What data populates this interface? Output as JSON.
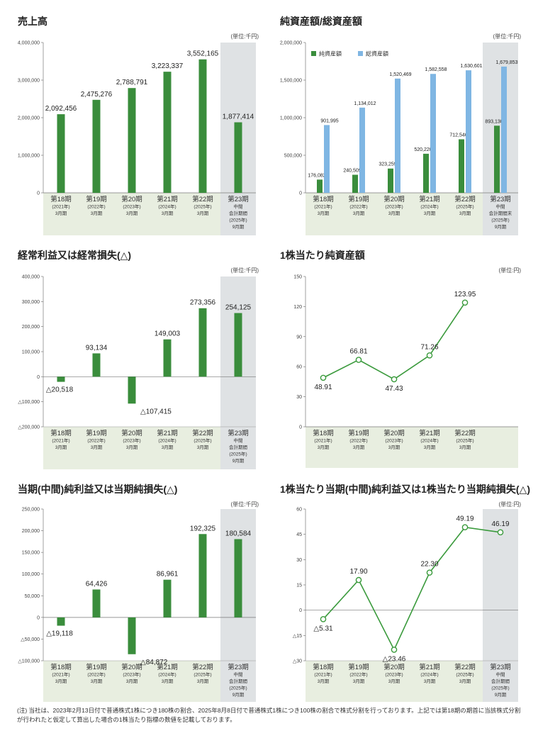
{
  "colors": {
    "bar_green": "#3a8d3c",
    "bar_blue": "#7fb6e3",
    "line_green": "#3a9a3c",
    "band": "#e8eee0",
    "highlight": "#dfe2e4"
  },
  "labels": {
    "p18": [
      "第18期",
      "2021年",
      "3月期"
    ],
    "p19": [
      "第19期",
      "2022年",
      "3月期"
    ],
    "p20": [
      "第20期",
      "2023年",
      "3月期"
    ],
    "p21": [
      "第21期",
      "2024年",
      "3月期"
    ],
    "p22": [
      "第22期",
      "2025年",
      "3月期"
    ],
    "p23": [
      "第23期",
      "中間",
      "会計期間",
      "2025年",
      "9月期"
    ],
    "p23b": [
      "第23期",
      "中間",
      "会計期間末",
      "2025年",
      "9月期"
    ]
  },
  "chart_data": [
    {
      "type": "bar",
      "title": "売上高",
      "unit": "(単位:千円)",
      "categories": [
        "第18期",
        "第19期",
        "第20期",
        "第21期",
        "第22期",
        "第23期"
      ],
      "values": [
        2092456,
        2475276,
        2788791,
        3223337,
        3552165,
        1877414
      ],
      "value_labels": [
        "2,092,456",
        "2,475,276",
        "2,788,791",
        "3,223,337",
        "3,552,165",
        "1,877,414"
      ],
      "ylim": [
        0,
        4000000
      ],
      "yticks": [
        0,
        1000000,
        2000000,
        3000000,
        4000000
      ],
      "ytick_labels": [
        "0",
        "1,000,000",
        "2,000,000",
        "3,000,000",
        "4,000,000"
      ],
      "highlight_last": true
    },
    {
      "type": "bar",
      "title": "純資産額/総資産額",
      "unit": "(単位:千円)",
      "categories": [
        "第18期",
        "第19期",
        "第20期",
        "第21期",
        "第22期",
        "第23期"
      ],
      "series": [
        {
          "name": "純資産額",
          "values": [
            176082,
            240509,
            323259,
            520220,
            712546,
            893130
          ],
          "labels": [
            "176,082",
            "240,509",
            "323,259",
            "520,220",
            "712,546",
            "893,130"
          ]
        },
        {
          "name": "総資産額",
          "values": [
            901995,
            1134012,
            1520469,
            1582558,
            1630601,
            1679853
          ],
          "labels": [
            "901,995",
            "1,134,012",
            "1,520,469",
            "1,582,558",
            "1,630,601",
            "1,679,853"
          ]
        }
      ],
      "ylim": [
        0,
        2000000
      ],
      "yticks": [
        0,
        500000,
        1000000,
        1500000,
        2000000
      ],
      "ytick_labels": [
        "0",
        "500,000",
        "1,000,000",
        "1,500,000",
        "2,000,000"
      ],
      "legend": "top-left",
      "highlight_last": true
    },
    {
      "type": "bar",
      "title": "経常利益又は経常損失(△)",
      "unit": "(単位:千円)",
      "categories": [
        "第18期",
        "第19期",
        "第20期",
        "第21期",
        "第22期",
        "第23期"
      ],
      "values": [
        -20518,
        93134,
        -107415,
        149003,
        273356,
        254125
      ],
      "value_labels": [
        "△20,518",
        "93,134",
        "△107,415",
        "149,003",
        "273,356",
        "254,125"
      ],
      "ylim": [
        -200000,
        400000
      ],
      "yticks": [
        -200000,
        -100000,
        0,
        100000,
        200000,
        300000,
        400000
      ],
      "ytick_labels": [
        "△200,000",
        "△100,000",
        "0",
        "100,000",
        "200,000",
        "300,000",
        "400,000"
      ],
      "highlight_last": true
    },
    {
      "type": "line",
      "title": "1株当たり純資産額",
      "unit": "(単位:円)",
      "categories": [
        "第18期",
        "第19期",
        "第20期",
        "第21期",
        "第22期"
      ],
      "values": [
        48.91,
        66.81,
        47.43,
        71.26,
        123.95
      ],
      "value_labels": [
        "48.91",
        "66.81",
        "47.43",
        "71.26",
        "123.95"
      ],
      "ylim": [
        0,
        150
      ],
      "yticks": [
        0,
        30,
        60,
        90,
        120,
        150
      ],
      "ytick_labels": [
        "0",
        "30",
        "60",
        "90",
        "120",
        "150"
      ],
      "highlight_last": false
    },
    {
      "type": "bar",
      "title": "当期(中間)純利益又は当期純損失(△)",
      "unit": "(単位:千円)",
      "categories": [
        "第18期",
        "第19期",
        "第20期",
        "第21期",
        "第22期",
        "第23期"
      ],
      "values": [
        -19118,
        64426,
        -84872,
        86961,
        192325,
        180584
      ],
      "value_labels": [
        "△19,118",
        "64,426",
        "△84,872",
        "86,961",
        "192,325",
        "180,584"
      ],
      "ylim": [
        -100000,
        250000
      ],
      "yticks": [
        -100000,
        -50000,
        0,
        50000,
        100000,
        150000,
        200000,
        250000
      ],
      "ytick_labels": [
        "△100,000",
        "△50,000",
        "0",
        "50,000",
        "100,000",
        "150,000",
        "200,000",
        "250,000"
      ],
      "highlight_last": true
    },
    {
      "type": "line",
      "title": "1株当たり当期(中間)純利益又は1株当たり当期純損失(△)",
      "unit": "(単位:円)",
      "categories": [
        "第18期",
        "第19期",
        "第20期",
        "第21期",
        "第22期",
        "第23期"
      ],
      "values": [
        -5.31,
        17.9,
        -23.46,
        22.3,
        49.19,
        46.19
      ],
      "value_labels": [
        "△5.31",
        "17.90",
        "△23.46",
        "22.30",
        "49.19",
        "46.19"
      ],
      "ylim": [
        -30,
        60
      ],
      "yticks": [
        -30,
        -15,
        0,
        15,
        30,
        45,
        60
      ],
      "ytick_labels": [
        "△30",
        "△15",
        "0",
        "15",
        "30",
        "45",
        "60"
      ],
      "highlight_last": true
    }
  ],
  "footnote": "(注) 当社は、2023年2月13日付で普通株式1株につき180株の割合、2025年8月8日付で普通株式1株につき100株の割合で株式分割を行っております。上記では第18期の期首に当該株式分割が行われたと仮定して算出した場合の1株当たり指標の数値を記載しております。"
}
